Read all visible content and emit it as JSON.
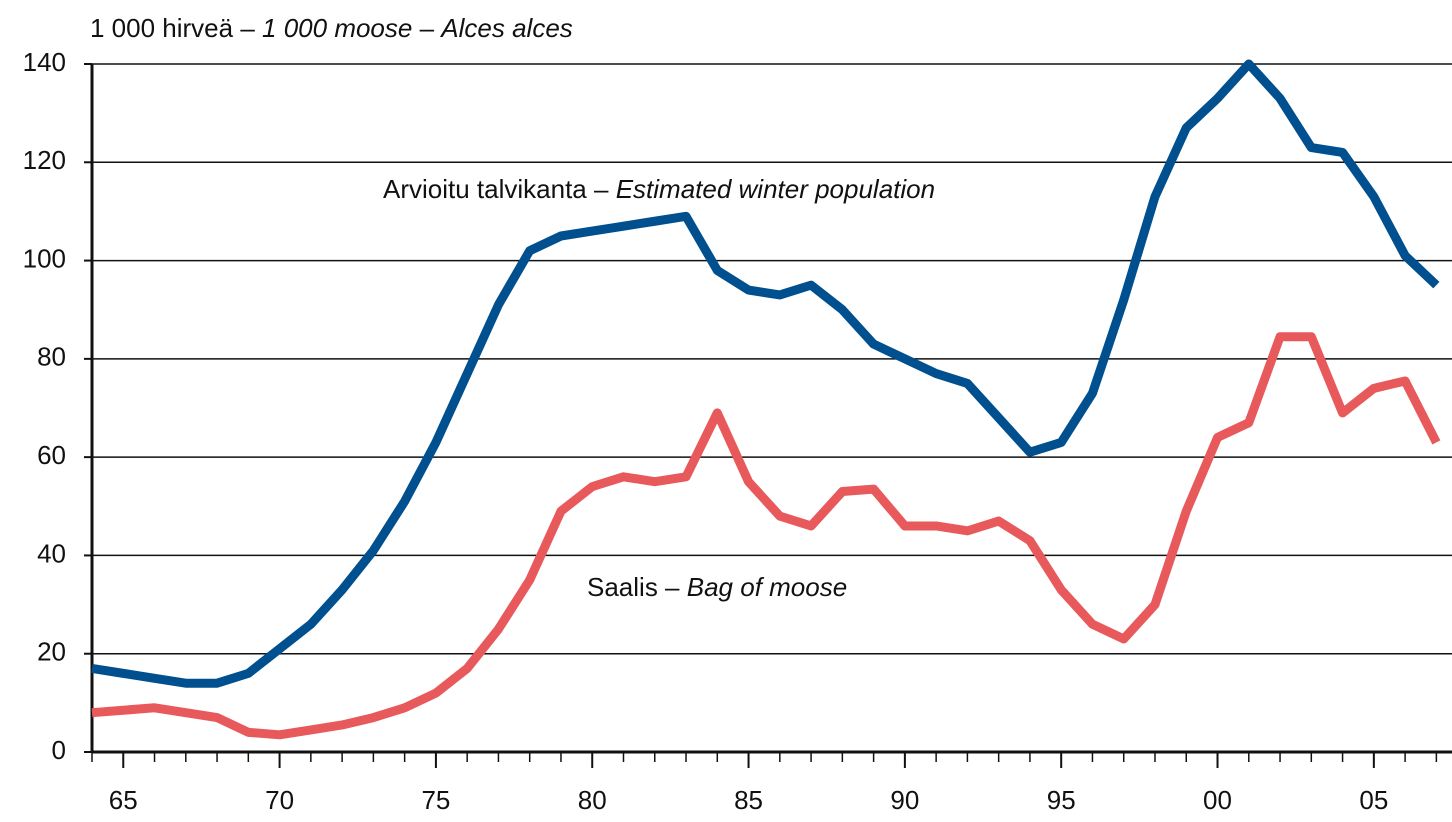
{
  "chart_data": {
    "type": "line",
    "title": "1 000 hirveä – 1 000 moose – Alces alces",
    "x": [
      1964,
      1965,
      1966,
      1967,
      1968,
      1969,
      1970,
      1971,
      1972,
      1973,
      1974,
      1975,
      1976,
      1977,
      1978,
      1979,
      1980,
      1981,
      1982,
      1983,
      1984,
      1985,
      1986,
      1987,
      1988,
      1989,
      1990,
      1991,
      1992,
      1993,
      1994,
      1995,
      1996,
      1997,
      1998,
      1999,
      2000,
      2001,
      2002,
      2003,
      2004,
      2005,
      2006,
      2007
    ],
    "series": [
      {
        "name": "Arvioitu talvikanta – Estimated winter population",
        "color": "#00508f",
        "values": [
          17,
          16,
          15,
          14,
          14,
          16,
          21,
          26,
          33,
          41,
          51,
          63,
          77,
          91,
          102,
          105,
          106,
          107,
          108,
          109,
          98,
          94,
          93,
          95,
          90,
          83,
          80,
          77,
          75,
          68,
          61,
          63,
          73,
          92,
          113,
          127,
          133,
          140,
          133,
          123,
          122,
          113,
          101,
          95
        ]
      },
      {
        "name": "Saalis – Bag of moose",
        "color": "#e8595c",
        "values": [
          8,
          8.5,
          9,
          8,
          7,
          4,
          3.5,
          4.5,
          5.5,
          7,
          9,
          12,
          17,
          25,
          35,
          49,
          54,
          56,
          55,
          56,
          69,
          55,
          48,
          46,
          53,
          53.5,
          46,
          46,
          45,
          47,
          43,
          33,
          26,
          23,
          30,
          49,
          64,
          67,
          84.5,
          84.5,
          69,
          74,
          75.5,
          63
        ]
      }
    ],
    "xlim": [
      1964,
      2007.5
    ],
    "xticks": [
      {
        "value": 1965,
        "label": "65"
      },
      {
        "value": 1970,
        "label": "70"
      },
      {
        "value": 1975,
        "label": "75"
      },
      {
        "value": 1980,
        "label": "80"
      },
      {
        "value": 1985,
        "label": "85"
      },
      {
        "value": 1990,
        "label": "90"
      },
      {
        "value": 1995,
        "label": "95"
      },
      {
        "value": 2000,
        "label": "00"
      },
      {
        "value": 2005,
        "label": "05"
      }
    ],
    "ylim": [
      0,
      140
    ],
    "yticks": [
      0,
      20,
      40,
      60,
      80,
      100,
      120,
      140
    ],
    "grid": true
  }
}
